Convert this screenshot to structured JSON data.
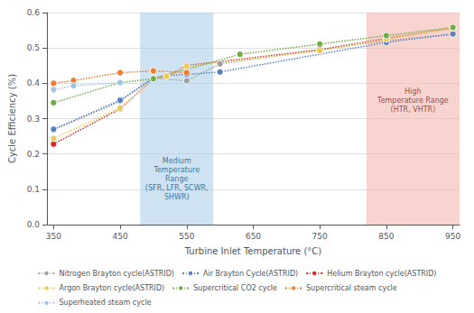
{
  "chart_data": {
    "type": "line",
    "xlabel": "Turbine Inlet Temperature (°C)",
    "ylabel": "Cycle Efficiency (%)",
    "xlim": [
      340,
      960
    ],
    "ylim": [
      0,
      0.6
    ],
    "xticks": [
      350,
      450,
      550,
      650,
      750,
      850,
      950
    ],
    "yticks": [
      {
        "value": 0,
        "label": "0.0"
      },
      0.1,
      0.2,
      0.3,
      0.4,
      0.5,
      0.6
    ],
    "grid": true,
    "legend": "bottom",
    "line_style": "dotted",
    "marker": "circle",
    "shaded_ranges": [
      {
        "x": [
          480,
          590
        ],
        "color": "#aecfe8"
      },
      {
        "x": [
          820,
          960
        ],
        "color": "#f4b8b0"
      }
    ],
    "annotations": [
      {
        "text": "Medium\nTemperature\nRange\n(SFR, LFR, SCWR,\nSHWR)",
        "x": 535,
        "y": 0.13,
        "color": "#1a5276"
      },
      {
        "text": "High\nTemperature Range\n(HTR, VHTR)",
        "x": 890,
        "y": 0.35,
        "color": "#7b241c"
      }
    ],
    "series": [
      {
        "name": "Nitrogen Brayton cycle(ASTRID)",
        "color": "#a0a0a0",
        "x": [
          350,
          450,
          500,
          550,
          600,
          850,
          950
        ],
        "values": [
          0.268,
          0.349,
          0.415,
          0.407,
          0.455,
          0.521,
          0.538
        ]
      },
      {
        "name": "Air Brayton Cycle(ASTRID)",
        "color": "#5580c8",
        "x": [
          350,
          450,
          500,
          520,
          550,
          600,
          850,
          950
        ],
        "values": [
          0.27,
          0.352,
          0.415,
          0.422,
          0.425,
          0.432,
          0.516,
          0.54
        ]
      },
      {
        "name": "Helium Brayton cycle(ASTRID)",
        "color": "#dd2222",
        "x": [
          350,
          450,
          500,
          520,
          550,
          750,
          850,
          950
        ],
        "values": [
          0.228,
          0.328,
          0.413,
          0.42,
          0.45,
          0.495,
          0.527,
          0.556
        ]
      },
      {
        "name": "Argon Brayton cycle(ASTRID)",
        "color": "#e8cc55",
        "x": [
          350,
          450,
          500,
          520,
          550,
          750,
          850,
          950
        ],
        "values": [
          0.244,
          0.33,
          0.413,
          0.42,
          0.448,
          0.492,
          0.525,
          0.556
        ]
      },
      {
        "name": "Supercritical CO2 cycle",
        "color": "#70ad47",
        "x": [
          350,
          450,
          500,
          630,
          750,
          850,
          950
        ],
        "values": [
          0.345,
          0.402,
          0.413,
          0.482,
          0.511,
          0.535,
          0.558
        ]
      },
      {
        "name": "Supercritical steam cycle",
        "color": "#ed7d31",
        "x": [
          350,
          380,
          450,
          500,
          550
        ],
        "values": [
          0.4,
          0.408,
          0.43,
          0.435,
          0.43
        ]
      },
      {
        "name": "Superheated steam cycle",
        "color": "#9dc3e6",
        "x": [
          350,
          380,
          450
        ],
        "values": [
          0.382,
          0.393,
          0.402
        ]
      }
    ]
  }
}
